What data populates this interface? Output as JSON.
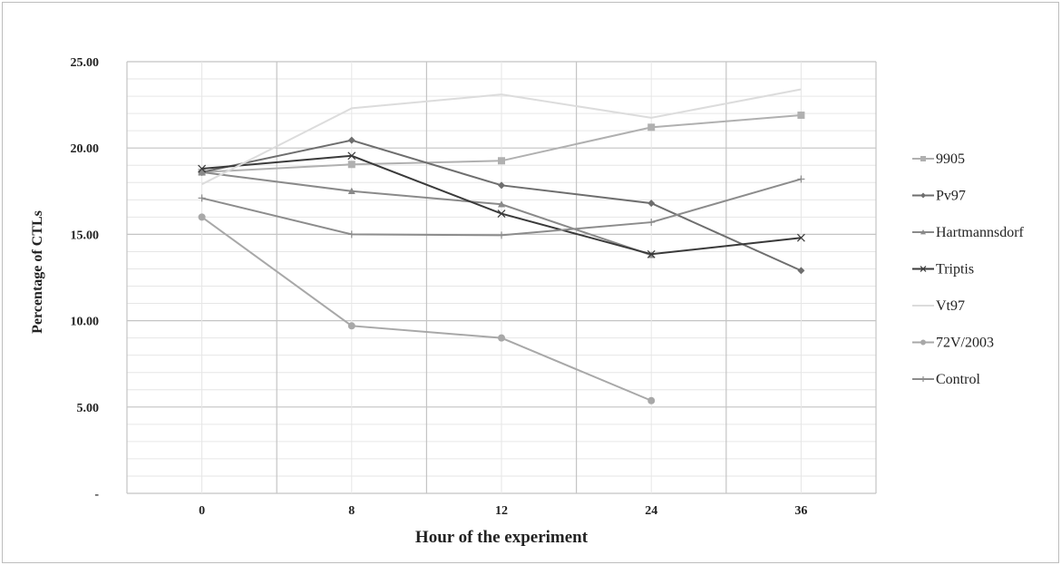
{
  "chart_data": {
    "type": "line",
    "title": "",
    "xlabel": "Hour of the experiment",
    "ylabel": "Percentage of CTLs",
    "categories": [
      "0",
      "8",
      "12",
      "24",
      "36"
    ],
    "ylim": [
      0,
      25
    ],
    "yticks": [
      "-",
      "5.00",
      "10.00",
      "15.00",
      "20.00",
      "25.00"
    ],
    "grid": true,
    "legend_position": "right",
    "series": [
      {
        "name": "9905",
        "marker": "square",
        "color": "#b0b0b0",
        "values": [
          18.6,
          19.05,
          19.26,
          21.2,
          21.9
        ]
      },
      {
        "name": "Pv97",
        "marker": "diamond",
        "color": "#6e6e6e",
        "values": [
          18.6,
          20.45,
          17.84,
          16.8,
          12.9
        ]
      },
      {
        "name": "Hartmannsdorf",
        "marker": "triangle",
        "color": "#8a8a8a",
        "values": [
          18.6,
          17.5,
          16.74,
          13.8,
          null
        ]
      },
      {
        "name": "Triptis",
        "marker": "x",
        "color": "#3a3a3a",
        "values": [
          18.8,
          19.55,
          16.2,
          13.85,
          14.8
        ]
      },
      {
        "name": "Vt97",
        "marker": "none",
        "color": "#dcdcdc",
        "values": [
          17.9,
          22.3,
          23.1,
          21.75,
          23.4
        ]
      },
      {
        "name": "72V/2003",
        "marker": "circle",
        "color": "#a8a8a8",
        "values": [
          16.0,
          9.7,
          9.0,
          5.37,
          null
        ]
      },
      {
        "name": "Control",
        "marker": "plus",
        "color": "#8c8c8c",
        "values": [
          17.1,
          15.0,
          14.95,
          15.7,
          18.2
        ]
      }
    ]
  }
}
